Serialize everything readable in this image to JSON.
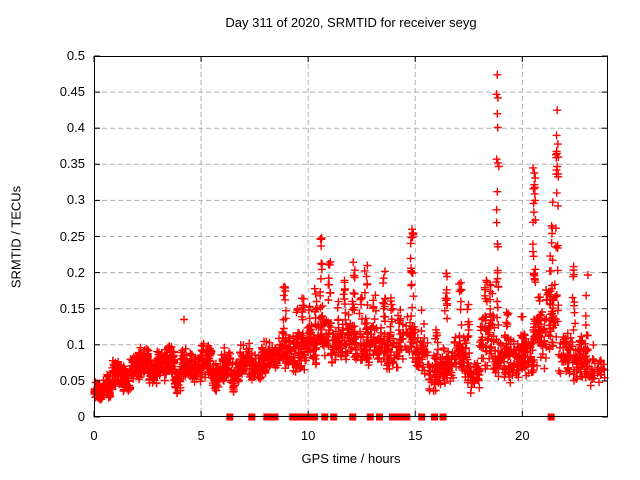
{
  "chart_data": {
    "type": "scatter",
    "title": "Day 311 of 2020, SRMTID for receiver seyg",
    "xlabel": "GPS time / hours",
    "ylabel": "SRMTID / TECUs",
    "xlim": [
      0,
      24
    ],
    "ylim": [
      0,
      0.5
    ],
    "xticks": [
      0,
      5,
      10,
      15,
      20
    ],
    "xtick_labels": [
      "0",
      "5",
      "10",
      "15",
      "20"
    ],
    "yticks": [
      0,
      0.05,
      0.1,
      0.15,
      0.2,
      0.25,
      0.3,
      0.35,
      0.4,
      0.45,
      0.5
    ],
    "ytick_labels": [
      "0",
      "0.05",
      "0.1",
      "0.15",
      "0.2",
      "0.25",
      "0.3",
      "0.35",
      "0.4",
      "0.45",
      "0.5"
    ],
    "grid": true,
    "grid_color": "#b0b0b0",
    "marker": "plus",
    "marker_color": "#ff0000",
    "zero_marker": "filled-square",
    "series_name": "SRMTID",
    "bands": [
      [
        0.0,
        0.4,
        0.02,
        0.052,
        55
      ],
      [
        0.4,
        0.85,
        0.025,
        0.06,
        45
      ],
      [
        0.85,
        1.3,
        0.04,
        0.088,
        55
      ],
      [
        1.3,
        1.7,
        0.035,
        0.072,
        45
      ],
      [
        1.7,
        2.15,
        0.048,
        0.09,
        55
      ],
      [
        2.15,
        2.55,
        0.055,
        0.1,
        55
      ],
      [
        2.55,
        2.95,
        0.04,
        0.082,
        48
      ],
      [
        2.95,
        3.35,
        0.05,
        0.096,
        52
      ],
      [
        3.35,
        3.75,
        0.055,
        0.102,
        52
      ],
      [
        3.75,
        4.05,
        0.028,
        0.07,
        35
      ],
      [
        4.05,
        4.55,
        0.05,
        0.097,
        55
      ],
      [
        4.55,
        5.0,
        0.045,
        0.09,
        50
      ],
      [
        5.0,
        5.5,
        0.05,
        0.107,
        58
      ],
      [
        5.5,
        5.9,
        0.03,
        0.076,
        40
      ],
      [
        5.9,
        6.4,
        0.045,
        0.1,
        50
      ],
      [
        6.4,
        6.8,
        0.03,
        0.08,
        42
      ],
      [
        6.8,
        7.3,
        0.05,
        0.106,
        52
      ],
      [
        7.3,
        7.8,
        0.042,
        0.092,
        46
      ],
      [
        7.8,
        8.6,
        0.055,
        0.107,
        75
      ],
      [
        8.6,
        9.25,
        0.06,
        0.122,
        55
      ],
      [
        9.25,
        9.9,
        0.055,
        0.118,
        55
      ],
      [
        9.9,
        10.45,
        0.07,
        0.132,
        48
      ],
      [
        10.45,
        11.0,
        0.08,
        0.142,
        42
      ],
      [
        11.0,
        11.6,
        0.07,
        0.132,
        46
      ],
      [
        11.6,
        12.2,
        0.078,
        0.142,
        46
      ],
      [
        12.2,
        12.9,
        0.06,
        0.122,
        50
      ],
      [
        12.9,
        13.6,
        0.068,
        0.13,
        48
      ],
      [
        13.6,
        14.3,
        0.06,
        0.122,
        46
      ],
      [
        14.3,
        15.0,
        0.078,
        0.14,
        42
      ],
      [
        15.0,
        15.6,
        0.058,
        0.112,
        46
      ],
      [
        15.6,
        16.2,
        0.03,
        0.09,
        46
      ],
      [
        16.2,
        16.8,
        0.04,
        0.1,
        46
      ],
      [
        16.8,
        17.4,
        0.05,
        0.12,
        50
      ],
      [
        17.4,
        18.0,
        0.03,
        0.09,
        46
      ],
      [
        18.0,
        18.7,
        0.058,
        0.15,
        52
      ],
      [
        18.7,
        19.3,
        0.048,
        0.12,
        52
      ],
      [
        19.3,
        19.9,
        0.04,
        0.11,
        56
      ],
      [
        19.9,
        20.5,
        0.05,
        0.13,
        52
      ],
      [
        20.5,
        21.1,
        0.06,
        0.16,
        50
      ],
      [
        21.1,
        21.7,
        0.08,
        0.19,
        46
      ],
      [
        21.7,
        22.3,
        0.05,
        0.13,
        46
      ],
      [
        22.3,
        22.9,
        0.04,
        0.13,
        50
      ],
      [
        22.9,
        23.5,
        0.04,
        0.105,
        36
      ],
      [
        23.5,
        23.9,
        0.04,
        0.09,
        16
      ]
    ],
    "columns": [
      [
        8.9,
        0.1,
        0.19,
        14
      ],
      [
        9.5,
        0.09,
        0.155,
        10
      ],
      [
        9.75,
        0.09,
        0.175,
        12
      ],
      [
        10.1,
        0.1,
        0.16,
        9
      ],
      [
        10.35,
        0.12,
        0.185,
        10
      ],
      [
        10.63,
        0.12,
        0.25,
        16
      ],
      [
        11.0,
        0.13,
        0.22,
        12
      ],
      [
        11.35,
        0.1,
        0.165,
        9
      ],
      [
        11.7,
        0.14,
        0.19,
        8
      ],
      [
        12.12,
        0.13,
        0.215,
        12
      ],
      [
        12.45,
        0.1,
        0.17,
        8
      ],
      [
        12.7,
        0.12,
        0.215,
        12
      ],
      [
        13.1,
        0.1,
        0.18,
        9
      ],
      [
        13.55,
        0.12,
        0.215,
        12
      ],
      [
        13.9,
        0.1,
        0.17,
        8
      ],
      [
        14.25,
        0.12,
        0.19,
        8
      ],
      [
        14.85,
        0.1,
        0.262,
        18
      ],
      [
        15.35,
        0.09,
        0.15,
        7
      ],
      [
        16.0,
        0.09,
        0.14,
        7
      ],
      [
        16.45,
        0.12,
        0.21,
        12
      ],
      [
        17.1,
        0.1,
        0.2,
        9
      ],
      [
        17.5,
        0.09,
        0.16,
        8
      ],
      [
        18.3,
        0.1,
        0.19,
        10
      ],
      [
        18.55,
        0.12,
        0.2,
        8
      ],
      [
        18.83,
        0.1,
        0.3,
        14
      ],
      [
        19.3,
        0.08,
        0.155,
        8
      ],
      [
        20.0,
        0.09,
        0.16,
        8
      ],
      [
        20.56,
        0.18,
        0.345,
        16
      ],
      [
        20.8,
        0.1,
        0.19,
        8
      ],
      [
        21.35,
        0.1,
        0.3,
        14
      ],
      [
        21.63,
        0.2,
        0.39,
        14
      ],
      [
        22.4,
        0.12,
        0.24,
        10
      ],
      [
        23.0,
        0.08,
        0.2,
        8
      ]
    ],
    "outlier_points": [
      [
        4.2,
        0.135
      ],
      [
        10.63,
        0.248
      ],
      [
        14.85,
        0.26
      ],
      [
        14.87,
        0.255
      ],
      [
        18.83,
        0.474
      ],
      [
        18.8,
        0.447
      ],
      [
        18.86,
        0.442
      ],
      [
        18.83,
        0.42
      ],
      [
        18.85,
        0.401
      ],
      [
        18.8,
        0.357
      ],
      [
        18.86,
        0.352
      ],
      [
        18.9,
        0.347
      ],
      [
        18.83,
        0.312
      ],
      [
        18.8,
        0.287
      ],
      [
        20.5,
        0.345
      ],
      [
        20.56,
        0.338
      ],
      [
        20.6,
        0.331
      ],
      [
        20.52,
        0.316
      ],
      [
        20.58,
        0.309
      ],
      [
        20.6,
        0.3
      ],
      [
        21.63,
        0.425
      ],
      [
        21.6,
        0.39
      ],
      [
        21.66,
        0.378
      ],
      [
        21.6,
        0.368
      ],
      [
        21.68,
        0.36
      ],
      [
        21.63,
        0.347
      ]
    ],
    "zero_marker_x": [
      6.34,
      7.37,
      8.07,
      8.2,
      8.33,
      8.45,
      9.28,
      9.51,
      9.84,
      10.07,
      10.3,
      10.77,
      11.19,
      12.08,
      12.9,
      13.33,
      13.94,
      14.2,
      14.4,
      14.6,
      15.3,
      15.9,
      16.3,
      21.35
    ]
  }
}
